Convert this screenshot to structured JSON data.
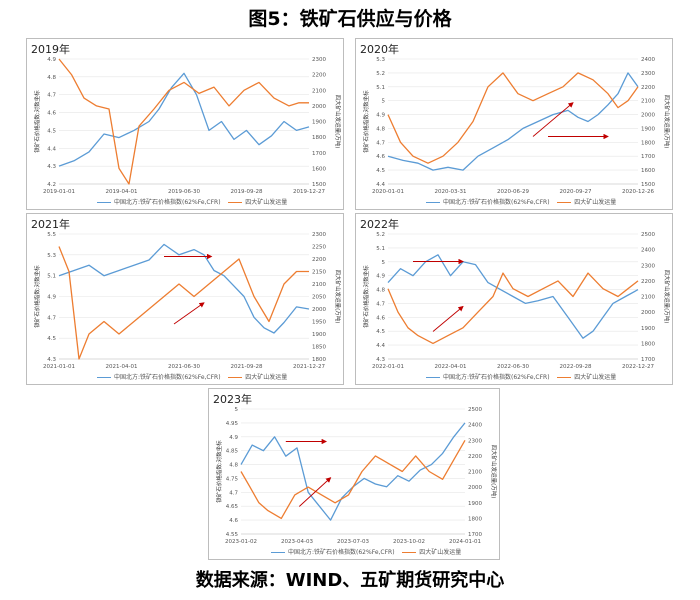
{
  "title": "图5：铁矿石供应与价格",
  "source": "数据来源：WIND、五矿期货研究中心",
  "colors": {
    "price": "#5b9bd5",
    "shipment": "#ed7d31",
    "arrow": "#c00000"
  },
  "legend": {
    "price": "中国北方:铁矿石价格指数(62%Fe,CFR)",
    "shipment": "四大矿山发运量"
  },
  "axis_labels": {
    "left": "铁矿石价格指数:对数坐标",
    "right": "四大矿山发运量(万吨)"
  },
  "chart_data": [
    {
      "type": "line",
      "panel_title": "2019年",
      "x_ticks": [
        "2019-01-01",
        "2019-04-01",
        "2019-06-30",
        "2019-09-28",
        "2019-12-27"
      ],
      "y_left_ticks": [
        "4.2",
        "4.3",
        "4.4",
        "4.5",
        "4.6",
        "4.7",
        "4.8",
        "4.9"
      ],
      "y_left_range": [
        4.2,
        4.9
      ],
      "y_right_ticks": [
        "1500",
        "1600",
        "1700",
        "1800",
        "1900",
        "2000",
        "2100",
        "2200",
        "2300"
      ],
      "y_right_range": [
        1500,
        2300
      ],
      "series": [
        {
          "name": "中国北方:铁矿石价格指数(62%Fe,CFR)",
          "axis": "left",
          "x": [
            0,
            0.06,
            0.12,
            0.18,
            0.24,
            0.3,
            0.36,
            0.4,
            0.45,
            0.5,
            0.55,
            0.6,
            0.65,
            0.7,
            0.75,
            0.8,
            0.85,
            0.9,
            0.95,
            1.0
          ],
          "values": [
            4.3,
            4.33,
            4.38,
            4.48,
            4.46,
            4.5,
            4.55,
            4.62,
            4.74,
            4.82,
            4.7,
            4.5,
            4.55,
            4.45,
            4.5,
            4.42,
            4.47,
            4.55,
            4.5,
            4.52
          ]
        },
        {
          "name": "四大矿山发运量",
          "axis": "right",
          "x": [
            0,
            0.05,
            0.1,
            0.15,
            0.2,
            0.24,
            0.28,
            0.32,
            0.38,
            0.44,
            0.5,
            0.56,
            0.62,
            0.68,
            0.74,
            0.8,
            0.86,
            0.92,
            0.96,
            1.0
          ],
          "values": [
            2300,
            2200,
            2050,
            2000,
            1980,
            1600,
            1500,
            1870,
            1980,
            2100,
            2150,
            2080,
            2120,
            2000,
            2100,
            2150,
            2050,
            2000,
            2020,
            2020
          ]
        }
      ],
      "arrows": []
    },
    {
      "type": "line",
      "panel_title": "2020年",
      "x_ticks": [
        "2020-01-01",
        "2020-03-31",
        "2020-06-29",
        "2020-09-27",
        "2020-12-26"
      ],
      "y_left_ticks": [
        "4.4",
        "4.5",
        "4.6",
        "4.7",
        "4.8",
        "4.9",
        "5",
        "5.1",
        "5.2",
        "5.3"
      ],
      "y_left_range": [
        4.4,
        5.3
      ],
      "y_right_ticks": [
        "1500",
        "1600",
        "1700",
        "1800",
        "1900",
        "2000",
        "2100",
        "2200",
        "2300",
        "2400"
      ],
      "y_right_range": [
        1500,
        2400
      ],
      "series": [
        {
          "name": "中国北方:铁矿石价格指数(62%Fe,CFR)",
          "axis": "left",
          "x": [
            0,
            0.06,
            0.12,
            0.18,
            0.24,
            0.3,
            0.36,
            0.42,
            0.48,
            0.54,
            0.6,
            0.66,
            0.72,
            0.76,
            0.8,
            0.84,
            0.88,
            0.92,
            0.96,
            1.0
          ],
          "values": [
            4.6,
            4.57,
            4.55,
            4.5,
            4.52,
            4.5,
            4.6,
            4.66,
            4.72,
            4.8,
            4.85,
            4.9,
            4.93,
            4.88,
            4.85,
            4.9,
            4.97,
            5.05,
            5.2,
            5.1
          ]
        },
        {
          "name": "四大矿山发运量",
          "axis": "right",
          "x": [
            0,
            0.05,
            0.1,
            0.16,
            0.22,
            0.28,
            0.34,
            0.4,
            0.46,
            0.52,
            0.58,
            0.64,
            0.7,
            0.76,
            0.82,
            0.88,
            0.92,
            0.96,
            1.0
          ],
          "values": [
            2000,
            1800,
            1700,
            1650,
            1700,
            1800,
            1950,
            2200,
            2300,
            2150,
            2100,
            2150,
            2200,
            2300,
            2250,
            2150,
            2050,
            2100,
            2200
          ]
        }
      ],
      "arrows": [
        {
          "x1": 0.58,
          "y1": 0.62,
          "x2": 0.74,
          "y2": 0.35
        },
        {
          "x1": 0.64,
          "y1": 0.62,
          "x2": 0.88,
          "y2": 0.62
        }
      ]
    },
    {
      "type": "line",
      "panel_title": "2021年",
      "x_ticks": [
        "2021-01-01",
        "2021-04-01",
        "2021-06-30",
        "2021-09-28",
        "2021-12-27"
      ],
      "y_left_ticks": [
        "4.3",
        "4.5",
        "4.7",
        "4.9",
        "5.1",
        "5.3",
        "5.5"
      ],
      "y_left_range": [
        4.3,
        5.5
      ],
      "y_right_ticks": [
        "1800",
        "1850",
        "1900",
        "1950",
        "2000",
        "2050",
        "2100",
        "2150",
        "2200",
        "2250",
        "2300"
      ],
      "y_right_range": [
        1800,
        2300
      ],
      "series": [
        {
          "name": "中国北方:铁矿石价格指数(62%Fe,CFR)",
          "axis": "left",
          "x": [
            0,
            0.06,
            0.12,
            0.18,
            0.24,
            0.3,
            0.36,
            0.42,
            0.48,
            0.54,
            0.58,
            0.62,
            0.66,
            0.7,
            0.74,
            0.78,
            0.82,
            0.86,
            0.9,
            0.95,
            1.0
          ],
          "values": [
            5.1,
            5.15,
            5.2,
            5.1,
            5.15,
            5.2,
            5.25,
            5.4,
            5.3,
            5.35,
            5.3,
            5.15,
            5.1,
            5.0,
            4.9,
            4.7,
            4.6,
            4.55,
            4.65,
            4.8,
            4.78
          ]
        },
        {
          "name": "四大矿山发运量",
          "axis": "right",
          "x": [
            0,
            0.04,
            0.08,
            0.12,
            0.18,
            0.24,
            0.3,
            0.36,
            0.42,
            0.48,
            0.54,
            0.6,
            0.66,
            0.72,
            0.78,
            0.84,
            0.9,
            0.95,
            1.0
          ],
          "values": [
            2250,
            2150,
            1800,
            1900,
            1950,
            1900,
            1950,
            2000,
            2050,
            2100,
            2050,
            2100,
            2150,
            2200,
            2050,
            1950,
            2100,
            2150,
            2150
          ]
        }
      ],
      "arrows": [
        {
          "x1": 0.42,
          "y1": 0.18,
          "x2": 0.61,
          "y2": 0.18
        },
        {
          "x1": 0.46,
          "y1": 0.72,
          "x2": 0.58,
          "y2": 0.55
        }
      ]
    },
    {
      "type": "line",
      "panel_title": "2022年",
      "x_ticks": [
        "2022-01-01",
        "2022-04-01",
        "2022-06-30",
        "2022-09-28",
        "2022-12-27"
      ],
      "y_left_ticks": [
        "4.3",
        "4.4",
        "4.5",
        "4.6",
        "4.7",
        "4.8",
        "4.9",
        "5",
        "5.1",
        "5.2"
      ],
      "y_left_range": [
        4.3,
        5.2
      ],
      "y_right_ticks": [
        "1700",
        "1800",
        "1900",
        "2000",
        "2100",
        "2200",
        "2300",
        "2400",
        "2500"
      ],
      "y_right_range": [
        1700,
        2500
      ],
      "series": [
        {
          "name": "中国北方:铁矿石价格指数(62%Fe,CFR)",
          "axis": "left",
          "x": [
            0,
            0.05,
            0.1,
            0.15,
            0.2,
            0.25,
            0.3,
            0.35,
            0.4,
            0.45,
            0.5,
            0.55,
            0.6,
            0.66,
            0.72,
            0.78,
            0.82,
            0.86,
            0.9,
            0.95,
            1.0
          ],
          "values": [
            4.85,
            4.95,
            4.9,
            5.0,
            5.05,
            4.9,
            5.0,
            4.98,
            4.85,
            4.8,
            4.75,
            4.7,
            4.72,
            4.75,
            4.6,
            4.45,
            4.5,
            4.6,
            4.7,
            4.75,
            4.8
          ]
        },
        {
          "name": "四大矿山发运量",
          "axis": "right",
          "x": [
            0,
            0.04,
            0.08,
            0.12,
            0.18,
            0.24,
            0.3,
            0.36,
            0.42,
            0.46,
            0.5,
            0.56,
            0.62,
            0.68,
            0.74,
            0.8,
            0.86,
            0.92,
            0.96,
            1.0
          ],
          "values": [
            2150,
            2000,
            1900,
            1850,
            1800,
            1850,
            1900,
            2000,
            2100,
            2250,
            2150,
            2100,
            2150,
            2200,
            2100,
            2250,
            2150,
            2100,
            2150,
            2200
          ]
        }
      ],
      "arrows": [
        {
          "x1": 0.1,
          "y1": 0.22,
          "x2": 0.3,
          "y2": 0.22
        },
        {
          "x1": 0.18,
          "y1": 0.78,
          "x2": 0.3,
          "y2": 0.58
        }
      ]
    },
    {
      "type": "line",
      "panel_title": "2023年",
      "x_ticks": [
        "2023-01-02",
        "2023-04-03",
        "2023-07-03",
        "2023-10-02",
        "2024-01-01"
      ],
      "y_left_ticks": [
        "4.55",
        "4.6",
        "4.65",
        "4.7",
        "4.75",
        "4.8",
        "4.85",
        "4.9",
        "4.95",
        "5"
      ],
      "y_left_range": [
        4.55,
        5.0
      ],
      "y_right_ticks": [
        "1700",
        "1800",
        "1900",
        "2000",
        "2100",
        "2200",
        "2300",
        "2400",
        "2500"
      ],
      "y_right_range": [
        1700,
        2500
      ],
      "series": [
        {
          "name": "中国北方:铁矿石价格指数(62%Fe,CFR)",
          "axis": "left",
          "x": [
            0,
            0.05,
            0.1,
            0.15,
            0.2,
            0.25,
            0.3,
            0.35,
            0.4,
            0.45,
            0.5,
            0.55,
            0.6,
            0.65,
            0.7,
            0.75,
            0.8,
            0.85,
            0.9,
            0.95,
            1.0
          ],
          "values": [
            4.8,
            4.87,
            4.85,
            4.9,
            4.83,
            4.86,
            4.7,
            4.65,
            4.6,
            4.68,
            4.72,
            4.75,
            4.73,
            4.72,
            4.76,
            4.74,
            4.78,
            4.8,
            4.84,
            4.9,
            4.95
          ]
        },
        {
          "name": "四大矿山发运量",
          "axis": "right",
          "x": [
            0,
            0.04,
            0.08,
            0.12,
            0.18,
            0.24,
            0.3,
            0.36,
            0.42,
            0.48,
            0.54,
            0.6,
            0.66,
            0.72,
            0.78,
            0.84,
            0.9,
            0.96,
            1.0
          ],
          "values": [
            2100,
            2000,
            1900,
            1850,
            1800,
            1950,
            2000,
            1950,
            1900,
            1950,
            2100,
            2200,
            2150,
            2100,
            2200,
            2100,
            2050,
            2200,
            2300
          ]
        }
      ],
      "arrows": [
        {
          "x1": 0.2,
          "y1": 0.26,
          "x2": 0.38,
          "y2": 0.26
        },
        {
          "x1": 0.26,
          "y1": 0.78,
          "x2": 0.4,
          "y2": 0.55
        }
      ]
    }
  ]
}
